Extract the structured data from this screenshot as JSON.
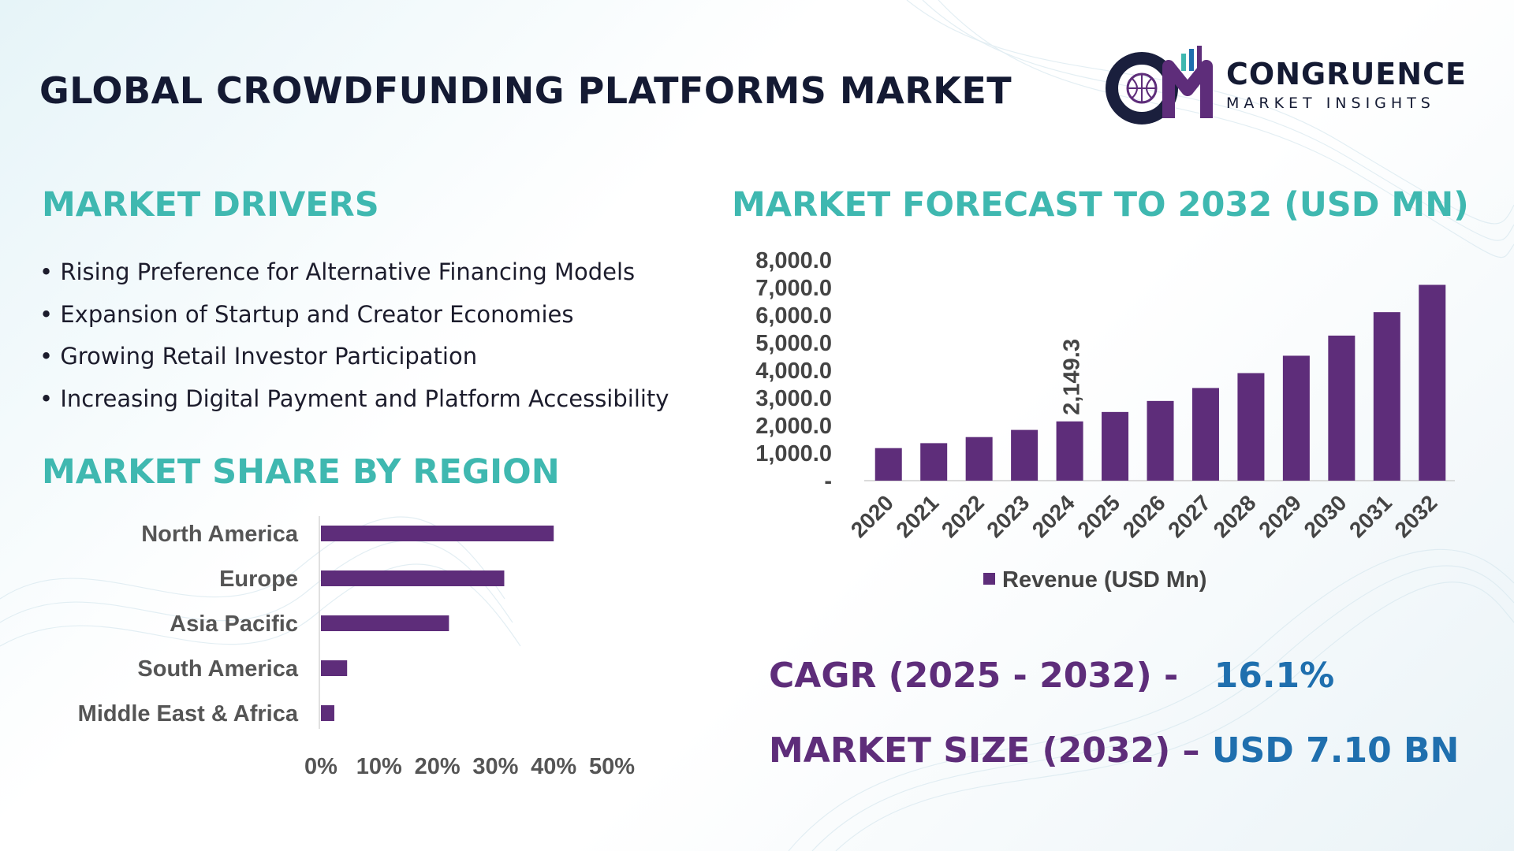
{
  "header": {
    "title": "GLOBAL CROWDFUNDING PLATFORMS MARKET",
    "logo": {
      "mark": "CM",
      "name": "CONGRUENCE",
      "tagline": "MARKET INSIGHTS"
    }
  },
  "drivers": {
    "title": "MARKET DRIVERS",
    "items": [
      "Rising Preference for Alternative Financing Models",
      "Expansion of Startup and Creator Economies",
      "Growing Retail Investor Participation",
      "Increasing Digital Payment and Platform Accessibility"
    ]
  },
  "forecast_title": "MARKET FORECAST TO 2032 (USD MN)",
  "region_title": "MARKET SHARE BY REGION",
  "stats": {
    "cagr_label": "CAGR (2025 - 2032) -",
    "cagr_value": "16.1%",
    "size_label": "MARKET SIZE (2032) –",
    "size_value": "USD 7.10 BN"
  },
  "colors": {
    "bar": "#5e2d7a",
    "heading": "#3fb8b0",
    "title": "#141a33",
    "accent_value": "#1f6fae"
  },
  "chart_data": [
    {
      "type": "bar",
      "categories": [
        "2020",
        "2021",
        "2022",
        "2023",
        "2024",
        "2025",
        "2026",
        "2027",
        "2028",
        "2029",
        "2030",
        "2031",
        "2032"
      ],
      "series": [
        {
          "name": "Revenue (USD Mn)",
          "values": [
            1180,
            1360,
            1580,
            1840,
            2149.3,
            2490,
            2890,
            3360,
            3900,
            4530,
            5260,
            6110,
            7100
          ]
        }
      ],
      "data_labels": [
        {
          "category": "2024",
          "text": "2,149.3"
        }
      ],
      "yticks": [
        "-",
        "1,000.0",
        "2,000.0",
        "3,000.0",
        "4,000.0",
        "5,000.0",
        "6,000.0",
        "7,000.0",
        "8,000.0"
      ],
      "ylim": [
        0,
        8000
      ],
      "legend_position": "bottom",
      "grid": false
    },
    {
      "type": "bar",
      "orientation": "horizontal",
      "categories": [
        "North America",
        "Europe",
        "Asia Pacific",
        "South America",
        "Middle East & Africa"
      ],
      "values": [
        40,
        31.5,
        22,
        4.5,
        2.3
      ],
      "unit": "%",
      "xticks": [
        "0%",
        "10%",
        "20%",
        "30%",
        "40%",
        "50%"
      ],
      "xlim": [
        0,
        50
      ],
      "grid": false
    }
  ]
}
